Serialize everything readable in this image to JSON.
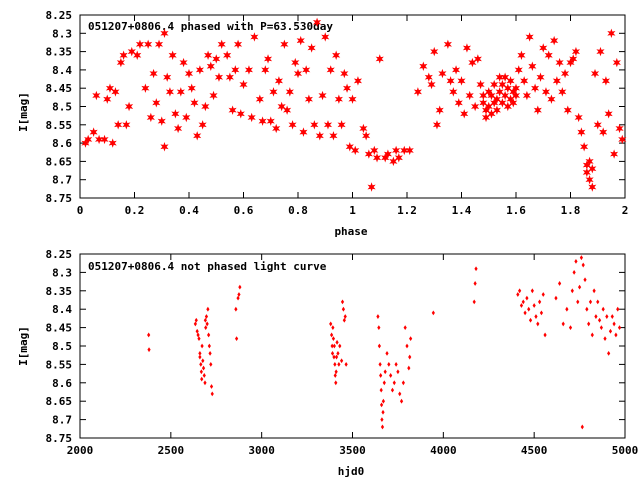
{
  "chart_data": [
    {
      "type": "scatter",
      "title": "051207+0806.4 phased with P=63.530day",
      "xlabel": "phase",
      "ylabel": "I[mag]",
      "xlim": [
        0,
        2
      ],
      "ylim": [
        8.25,
        8.75
      ],
      "y_inverted": true,
      "grid": false,
      "legend": "none",
      "marker": "star",
      "color": "#ff0000",
      "xticks": [
        "0",
        "0.2",
        "0.4",
        "0.6",
        "0.8",
        "1",
        "1.2",
        "1.4",
        "1.6",
        "1.8",
        "2"
      ],
      "yticks": [
        "8.25",
        "8.3",
        "8.35",
        "8.4",
        "8.45",
        "8.5",
        "8.55",
        "8.6",
        "8.65",
        "8.7",
        "8.75"
      ],
      "points": [
        [
          0.02,
          8.6
        ],
        [
          0.03,
          8.59
        ],
        [
          0.05,
          8.57
        ],
        [
          0.06,
          8.47
        ],
        [
          0.07,
          8.59
        ],
        [
          0.09,
          8.59
        ],
        [
          0.1,
          8.48
        ],
        [
          0.11,
          8.45
        ],
        [
          0.12,
          8.6
        ],
        [
          0.13,
          8.46
        ],
        [
          0.14,
          8.55
        ],
        [
          0.15,
          8.38
        ],
        [
          0.16,
          8.36
        ],
        [
          0.17,
          8.55
        ],
        [
          0.18,
          8.5
        ],
        [
          0.19,
          8.35
        ],
        [
          0.21,
          8.36
        ],
        [
          0.22,
          8.33
        ],
        [
          0.24,
          8.45
        ],
        [
          0.25,
          8.33
        ],
        [
          0.26,
          8.53
        ],
        [
          0.27,
          8.41
        ],
        [
          0.28,
          8.49
        ],
        [
          0.29,
          8.33
        ],
        [
          0.3,
          8.54
        ],
        [
          0.31,
          8.3
        ],
        [
          0.31,
          8.61
        ],
        [
          0.32,
          8.42
        ],
        [
          0.33,
          8.46
        ],
        [
          0.34,
          8.36
        ],
        [
          0.35,
          8.52
        ],
        [
          0.36,
          8.56
        ],
        [
          0.37,
          8.46
        ],
        [
          0.38,
          8.38
        ],
        [
          0.39,
          8.53
        ],
        [
          0.4,
          8.41
        ],
        [
          0.41,
          8.45
        ],
        [
          0.42,
          8.49
        ],
        [
          0.43,
          8.58
        ],
        [
          0.44,
          8.4
        ],
        [
          0.45,
          8.55
        ],
        [
          0.46,
          8.5
        ],
        [
          0.47,
          8.36
        ],
        [
          0.48,
          8.39
        ],
        [
          0.49,
          8.47
        ],
        [
          0.5,
          8.37
        ],
        [
          0.51,
          8.42
        ],
        [
          0.52,
          8.33
        ],
        [
          0.54,
          8.36
        ],
        [
          0.55,
          8.42
        ],
        [
          0.56,
          8.51
        ],
        [
          0.57,
          8.4
        ],
        [
          0.58,
          8.33
        ],
        [
          0.59,
          8.52
        ],
        [
          0.6,
          8.44
        ],
        [
          0.62,
          8.4
        ],
        [
          0.63,
          8.53
        ],
        [
          0.64,
          8.31
        ],
        [
          0.66,
          8.48
        ],
        [
          0.67,
          8.54
        ],
        [
          0.68,
          8.4
        ],
        [
          0.69,
          8.37
        ],
        [
          0.7,
          8.54
        ],
        [
          0.71,
          8.46
        ],
        [
          0.72,
          8.56
        ],
        [
          0.73,
          8.43
        ],
        [
          0.74,
          8.5
        ],
        [
          0.75,
          8.33
        ],
        [
          0.76,
          8.51
        ],
        [
          0.77,
          8.46
        ],
        [
          0.78,
          8.55
        ],
        [
          0.79,
          8.38
        ],
        [
          0.8,
          8.41
        ],
        [
          0.81,
          8.32
        ],
        [
          0.82,
          8.57
        ],
        [
          0.83,
          8.4
        ],
        [
          0.84,
          8.48
        ],
        [
          0.85,
          8.34
        ],
        [
          0.86,
          8.55
        ],
        [
          0.87,
          8.27
        ],
        [
          0.88,
          8.58
        ],
        [
          0.89,
          8.47
        ],
        [
          0.9,
          8.31
        ],
        [
          0.91,
          8.55
        ],
        [
          0.92,
          8.4
        ],
        [
          0.93,
          8.58
        ],
        [
          0.94,
          8.36
        ],
        [
          0.95,
          8.48
        ],
        [
          0.96,
          8.55
        ],
        [
          0.97,
          8.41
        ],
        [
          0.98,
          8.45
        ],
        [
          0.99,
          8.61
        ],
        [
          1.0,
          8.48
        ],
        [
          1.01,
          8.62
        ],
        [
          1.02,
          8.43
        ],
        [
          1.04,
          8.56
        ],
        [
          1.05,
          8.58
        ],
        [
          1.06,
          8.63
        ],
        [
          1.07,
          8.72
        ],
        [
          1.08,
          8.62
        ],
        [
          1.09,
          8.64
        ],
        [
          1.1,
          8.37
        ],
        [
          1.12,
          8.64
        ],
        [
          1.13,
          8.63
        ],
        [
          1.15,
          8.65
        ],
        [
          1.16,
          8.62
        ],
        [
          1.17,
          8.64
        ],
        [
          1.19,
          8.62
        ],
        [
          1.21,
          8.62
        ],
        [
          1.24,
          8.46
        ],
        [
          1.26,
          8.39
        ],
        [
          1.28,
          8.42
        ],
        [
          1.29,
          8.44
        ],
        [
          1.3,
          8.35
        ],
        [
          1.31,
          8.55
        ],
        [
          1.32,
          8.51
        ],
        [
          1.33,
          8.41
        ],
        [
          1.35,
          8.33
        ],
        [
          1.36,
          8.43
        ],
        [
          1.37,
          8.46
        ],
        [
          1.38,
          8.4
        ],
        [
          1.39,
          8.49
        ],
        [
          1.4,
          8.43
        ],
        [
          1.41,
          8.52
        ],
        [
          1.42,
          8.34
        ],
        [
          1.43,
          8.47
        ],
        [
          1.44,
          8.38
        ],
        [
          1.45,
          8.5
        ],
        [
          1.46,
          8.37
        ],
        [
          1.47,
          8.44
        ],
        [
          1.48,
          8.47
        ],
        [
          1.48,
          8.49
        ],
        [
          1.49,
          8.51
        ],
        [
          1.49,
          8.53
        ],
        [
          1.5,
          8.46
        ],
        [
          1.5,
          8.5
        ],
        [
          1.51,
          8.52
        ],
        [
          1.51,
          8.47
        ],
        [
          1.52,
          8.44
        ],
        [
          1.52,
          8.49
        ],
        [
          1.53,
          8.48
        ],
        [
          1.53,
          8.51
        ],
        [
          1.54,
          8.42
        ],
        [
          1.54,
          8.46
        ],
        [
          1.55,
          8.44
        ],
        [
          1.55,
          8.49
        ],
        [
          1.56,
          8.47
        ],
        [
          1.56,
          8.42
        ],
        [
          1.57,
          8.45
        ],
        [
          1.57,
          8.5
        ],
        [
          1.58,
          8.48
        ],
        [
          1.58,
          8.43
        ],
        [
          1.59,
          8.46
        ],
        [
          1.59,
          8.49
        ],
        [
          1.6,
          8.47
        ],
        [
          1.6,
          8.45
        ],
        [
          1.61,
          8.4
        ],
        [
          1.62,
          8.36
        ],
        [
          1.63,
          8.43
        ],
        [
          1.64,
          8.47
        ],
        [
          1.65,
          8.31
        ],
        [
          1.66,
          8.39
        ],
        [
          1.67,
          8.45
        ],
        [
          1.68,
          8.51
        ],
        [
          1.69,
          8.42
        ],
        [
          1.7,
          8.34
        ],
        [
          1.71,
          8.46
        ],
        [
          1.72,
          8.36
        ],
        [
          1.73,
          8.48
        ],
        [
          1.74,
          8.32
        ],
        [
          1.75,
          8.43
        ],
        [
          1.76,
          8.38
        ],
        [
          1.77,
          8.46
        ],
        [
          1.78,
          8.41
        ],
        [
          1.79,
          8.51
        ],
        [
          1.8,
          8.38
        ],
        [
          1.81,
          8.37
        ],
        [
          1.82,
          8.35
        ],
        [
          1.83,
          8.53
        ],
        [
          1.84,
          8.57
        ],
        [
          1.85,
          8.61
        ],
        [
          1.86,
          8.66
        ],
        [
          1.86,
          8.68
        ],
        [
          1.87,
          8.7
        ],
        [
          1.87,
          8.65
        ],
        [
          1.88,
          8.72
        ],
        [
          1.88,
          8.67
        ],
        [
          1.89,
          8.41
        ],
        [
          1.9,
          8.55
        ],
        [
          1.91,
          8.35
        ],
        [
          1.92,
          8.57
        ],
        [
          1.93,
          8.43
        ],
        [
          1.94,
          8.52
        ],
        [
          1.95,
          8.3
        ],
        [
          1.96,
          8.63
        ],
        [
          1.97,
          8.38
        ],
        [
          1.98,
          8.56
        ],
        [
          1.99,
          8.59
        ]
      ]
    },
    {
      "type": "scatter",
      "title": "051207+0806.4 not phased light curve",
      "xlabel": "hjd0",
      "ylabel": "I[mag]",
      "xlim": [
        2000,
        5000
      ],
      "ylim": [
        8.25,
        8.75
      ],
      "y_inverted": true,
      "grid": false,
      "legend": "none",
      "marker": "diamond",
      "color": "#ff0000",
      "xticks": [
        "2000",
        "2500",
        "3000",
        "3500",
        "4000",
        "4500",
        "5000"
      ],
      "yticks": [
        "8.25",
        "8.3",
        "8.35",
        "8.4",
        "8.45",
        "8.5",
        "8.55",
        "8.6",
        "8.65",
        "8.7",
        "8.75"
      ],
      "points": [
        [
          2378,
          8.47
        ],
        [
          2380,
          8.51
        ],
        [
          2635,
          8.44
        ],
        [
          2640,
          8.43
        ],
        [
          2645,
          8.46
        ],
        [
          2650,
          8.47
        ],
        [
          2655,
          8.48
        ],
        [
          2660,
          8.52
        ],
        [
          2665,
          8.55
        ],
        [
          2668,
          8.57
        ],
        [
          2672,
          8.5
        ],
        [
          2676,
          8.54
        ],
        [
          2680,
          8.56
        ],
        [
          2684,
          8.58
        ],
        [
          2688,
          8.6
        ],
        [
          2692,
          8.45
        ],
        [
          2696,
          8.42
        ],
        [
          2700,
          8.44
        ],
        [
          2704,
          8.4
        ],
        [
          2708,
          8.47
        ],
        [
          2712,
          8.5
        ],
        [
          2716,
          8.52
        ],
        [
          2720,
          8.55
        ],
        [
          2724,
          8.61
        ],
        [
          2728,
          8.63
        ],
        [
          2660,
          8.53
        ],
        [
          2670,
          8.59
        ],
        [
          2690,
          8.43
        ],
        [
          2858,
          8.4
        ],
        [
          2862,
          8.48
        ],
        [
          2870,
          8.37
        ],
        [
          2875,
          8.36
        ],
        [
          2880,
          8.34
        ],
        [
          3380,
          8.44
        ],
        [
          3385,
          8.47
        ],
        [
          3388,
          8.5
        ],
        [
          3390,
          8.52
        ],
        [
          3392,
          8.45
        ],
        [
          3395,
          8.48
        ],
        [
          3398,
          8.53
        ],
        [
          3400,
          8.5
        ],
        [
          3403,
          8.55
        ],
        [
          3405,
          8.58
        ],
        [
          3408,
          8.6
        ],
        [
          3410,
          8.57
        ],
        [
          3412,
          8.53
        ],
        [
          3415,
          8.49
        ],
        [
          3420,
          8.52
        ],
        [
          3425,
          8.55
        ],
        [
          3430,
          8.5
        ],
        [
          3440,
          8.54
        ],
        [
          3445,
          8.38
        ],
        [
          3450,
          8.4
        ],
        [
          3455,
          8.43
        ],
        [
          3460,
          8.42
        ],
        [
          3465,
          8.55
        ],
        [
          3640,
          8.42
        ],
        [
          3645,
          8.45
        ],
        [
          3648,
          8.5
        ],
        [
          3652,
          8.55
        ],
        [
          3655,
          8.58
        ],
        [
          3658,
          8.62
        ],
        [
          3660,
          8.66
        ],
        [
          3662,
          8.7
        ],
        [
          3665,
          8.72
        ],
        [
          3668,
          8.68
        ],
        [
          3670,
          8.65
        ],
        [
          3675,
          8.6
        ],
        [
          3680,
          8.57
        ],
        [
          3690,
          8.52
        ],
        [
          3700,
          8.55
        ],
        [
          3710,
          8.58
        ],
        [
          3720,
          8.62
        ],
        [
          3730,
          8.6
        ],
        [
          3740,
          8.55
        ],
        [
          3750,
          8.57
        ],
        [
          3760,
          8.63
        ],
        [
          3770,
          8.65
        ],
        [
          3780,
          8.6
        ],
        [
          3790,
          8.45
        ],
        [
          3800,
          8.5
        ],
        [
          3810,
          8.56
        ],
        [
          3815,
          8.53
        ],
        [
          3820,
          8.48
        ],
        [
          3945,
          8.41
        ],
        [
          4170,
          8.38
        ],
        [
          4175,
          8.33
        ],
        [
          4180,
          8.29
        ],
        [
          4410,
          8.36
        ],
        [
          4420,
          8.35
        ],
        [
          4430,
          8.39
        ],
        [
          4440,
          8.38
        ],
        [
          4450,
          8.41
        ],
        [
          4460,
          8.37
        ],
        [
          4470,
          8.4
        ],
        [
          4480,
          8.43
        ],
        [
          4490,
          8.35
        ],
        [
          4500,
          8.39
        ],
        [
          4510,
          8.42
        ],
        [
          4520,
          8.44
        ],
        [
          4530,
          8.38
        ],
        [
          4540,
          8.41
        ],
        [
          4550,
          8.36
        ],
        [
          4560,
          8.47
        ],
        [
          4620,
          8.37
        ],
        [
          4640,
          8.33
        ],
        [
          4660,
          8.44
        ],
        [
          4680,
          8.4
        ],
        [
          4700,
          8.45
        ],
        [
          4710,
          8.35
        ],
        [
          4720,
          8.3
        ],
        [
          4730,
          8.27
        ],
        [
          4740,
          8.38
        ],
        [
          4750,
          8.34
        ],
        [
          4760,
          8.26
        ],
        [
          4770,
          8.28
        ],
        [
          4780,
          8.32
        ],
        [
          4790,
          8.4
        ],
        [
          4800,
          8.44
        ],
        [
          4810,
          8.38
        ],
        [
          4820,
          8.47
        ],
        [
          4830,
          8.35
        ],
        [
          4840,
          8.42
        ],
        [
          4850,
          8.38
        ],
        [
          4860,
          8.43
        ],
        [
          4870,
          8.45
        ],
        [
          4880,
          8.4
        ],
        [
          4890,
          8.48
        ],
        [
          4900,
          8.42
        ],
        [
          4910,
          8.52
        ],
        [
          4920,
          8.46
        ],
        [
          4930,
          8.42
        ],
        [
          4940,
          8.44
        ],
        [
          4950,
          8.47
        ],
        [
          4960,
          8.4
        ],
        [
          4970,
          8.45
        ],
        [
          4765,
          8.72
        ]
      ]
    }
  ]
}
